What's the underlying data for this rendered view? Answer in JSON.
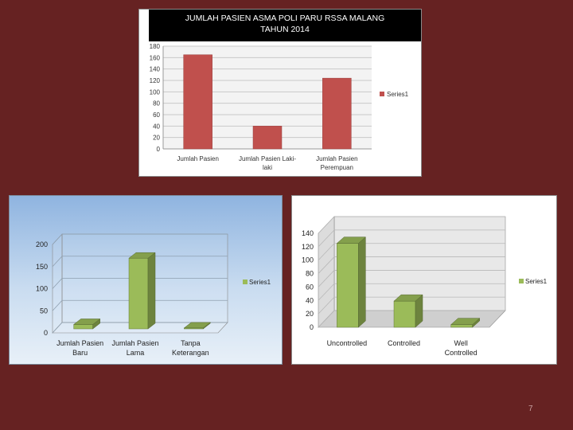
{
  "page": {
    "number": "7",
    "background": "#662222"
  },
  "chart_data": [
    {
      "type": "bar",
      "title": "JUMLAH PASIEN ASMA POLI PARU RSSA MALANG TAHUN 2014",
      "title_lines": [
        "JUMLAH PASIEN ASMA POLI PARU RSSA MALANG",
        "TAHUN 2014"
      ],
      "categories": [
        "Jumlah Pasien",
        "Jumlah Pasien Laki-laki",
        "Jumlah Pasien Perempuan"
      ],
      "category_lines": [
        [
          "Jumlah Pasien"
        ],
        [
          "Jumlah Pasien Laki-",
          "laki"
        ],
        [
          "Jumlah Pasien",
          "Perempuan"
        ]
      ],
      "series": [
        {
          "name": "Series1",
          "values": [
            165,
            40,
            124
          ],
          "color": "#c0504d"
        }
      ],
      "ylim": [
        0,
        180
      ],
      "yticks": [
        "0",
        "20",
        "40",
        "60",
        "80",
        "100",
        "120",
        "140",
        "160",
        "180"
      ],
      "grid": true,
      "legend_position": "right"
    },
    {
      "type": "bar",
      "style": "3d",
      "categories": [
        "Jumlah Pasien Baru",
        "Jumlah Pasien Lama",
        "Tanpa Keterangan"
      ],
      "category_lines": [
        [
          "Jumlah Pasien",
          "Baru"
        ],
        [
          "Jumlah Pasien",
          "Lama"
        ],
        [
          "Tanpa",
          "Keterangan"
        ]
      ],
      "series": [
        {
          "name": "Series1",
          "values": [
            10,
            160,
            2
          ],
          "color": "#9bbb59"
        }
      ],
      "ylim": [
        0,
        200
      ],
      "yticks": [
        "0",
        "50",
        "100",
        "150",
        "200"
      ],
      "grid": true,
      "legend_position": "right"
    },
    {
      "type": "bar",
      "style": "3d",
      "categories": [
        "Uncontrolled",
        "Controlled",
        "Well Controlled"
      ],
      "category_lines": [
        [
          "Uncontrolled"
        ],
        [
          "Controlled"
        ],
        [
          "Well",
          "Controlled"
        ]
      ],
      "series": [
        {
          "name": "Series1",
          "values": [
            125,
            39,
            4
          ],
          "color": "#9bbb59"
        }
      ],
      "ylim": [
        0,
        140
      ],
      "yticks": [
        "0",
        "20",
        "40",
        "60",
        "80",
        "100",
        "120",
        "140"
      ],
      "grid": true,
      "legend_position": "right"
    }
  ]
}
